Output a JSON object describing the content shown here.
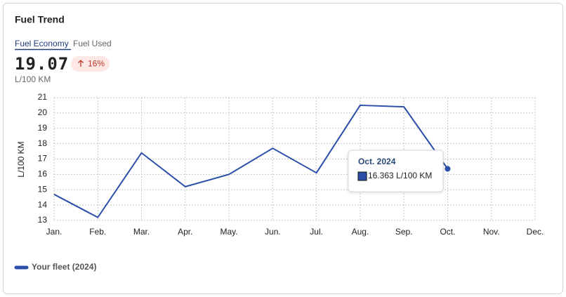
{
  "card": {
    "title": "Fuel Trend",
    "tabs": [
      "Fuel Economy",
      "Fuel Used"
    ],
    "metric": "19.07",
    "change": "16%",
    "unit": "L/100 KM"
  },
  "tooltip": {
    "title": "Oct. 2024",
    "text": "16.363 L/100 KM"
  },
  "chart_data": {
    "type": "line",
    "y_label": "L/100 KM",
    "categories": [
      "Jan.",
      "Feb.",
      "Mar.",
      "Apr.",
      "May.",
      "Jun.",
      "Jul.",
      "Aug.",
      "Sep.",
      "Oct.",
      "Nov.",
      "Dec."
    ],
    "series": [
      {
        "name": "Your fleet (2024)",
        "color": "#2b4fa8",
        "values": [
          14.7,
          13.2,
          17.4,
          15.2,
          16.0,
          17.7,
          16.1,
          20.5,
          20.4,
          16.363,
          null,
          null
        ]
      }
    ],
    "ylim": [
      13,
      21
    ],
    "yticks": [
      13,
      14,
      15,
      16,
      17,
      18,
      19,
      20,
      21
    ],
    "grid": true,
    "legend": "bottom-left"
  }
}
